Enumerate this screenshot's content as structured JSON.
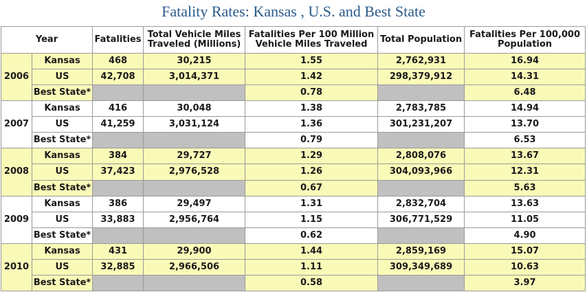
{
  "title": "Fatality Rates: Kansas , U.S. and Best State",
  "headers": {
    "year": "Year",
    "fatalities": "Fatalities",
    "vmt_l1": "Total Vehicle Miles",
    "vmt_l2": "Traveled (Millions)",
    "rate_vmt_l1": "Fatalities Per 100 Million",
    "rate_vmt_l2": "Vehicle Miles Traveled",
    "population": "Total Population",
    "rate_pop_l1": "Fatalities Per 100,000",
    "rate_pop_l2": "Population"
  },
  "years": [
    {
      "year": "2006",
      "rows": [
        {
          "label": "Kansas",
          "fatalities": "468",
          "vmt": "30,215",
          "rate_vmt": "1.55",
          "population": "2,762,931",
          "rate_pop": "16.94"
        },
        {
          "label": "US",
          "fatalities": "42,708",
          "vmt": "3,014,371",
          "rate_vmt": "1.42",
          "population": "298,379,912",
          "rate_pop": "14.31"
        },
        {
          "label": "Best State*",
          "rate_vmt": "0.78",
          "rate_pop": "6.48"
        }
      ]
    },
    {
      "year": "2007",
      "rows": [
        {
          "label": "Kansas",
          "fatalities": "416",
          "vmt": "30,048",
          "rate_vmt": "1.38",
          "population": "2,783,785",
          "rate_pop": "14.94"
        },
        {
          "label": "US",
          "fatalities": "41,259",
          "vmt": "3,031,124",
          "rate_vmt": "1.36",
          "population": "301,231,207",
          "rate_pop": "13.70"
        },
        {
          "label": "Best State*",
          "rate_vmt": "0.79",
          "rate_pop": "6.53"
        }
      ]
    },
    {
      "year": "2008",
      "rows": [
        {
          "label": "Kansas",
          "fatalities": "384",
          "vmt": "29,727",
          "rate_vmt": "1.29",
          "population": "2,808,076",
          "rate_pop": "13.67"
        },
        {
          "label": "US",
          "fatalities": "37,423",
          "vmt": "2,976,528",
          "rate_vmt": "1.26",
          "population": "304,093,966",
          "rate_pop": "12.31"
        },
        {
          "label": "Best State*",
          "rate_vmt": "0.67",
          "rate_pop": "5.63"
        }
      ]
    },
    {
      "year": "2009",
      "rows": [
        {
          "label": "Kansas",
          "fatalities": "386",
          "vmt": "29,497",
          "rate_vmt": "1.31",
          "population": "2,832,704",
          "rate_pop": "13.63"
        },
        {
          "label": "US",
          "fatalities": "33,883",
          "vmt": "2,956,764",
          "rate_vmt": "1.15",
          "population": "306,771,529",
          "rate_pop": "11.05"
        },
        {
          "label": "Best State*",
          "rate_vmt": "0.62",
          "rate_pop": "4.90"
        }
      ]
    },
    {
      "year": "2010",
      "rows": [
        {
          "label": "Kansas",
          "fatalities": "431",
          "vmt": "29,900",
          "rate_vmt": "1.44",
          "population": "2,859,169",
          "rate_pop": "15.07"
        },
        {
          "label": "US",
          "fatalities": "32,885",
          "vmt": "2,966,506",
          "rate_vmt": "1.11",
          "population": "309,349,689",
          "rate_pop": "10.63"
        },
        {
          "label": "Best State*",
          "rate_vmt": "0.58",
          "rate_pop": "3.97"
        }
      ]
    }
  ]
}
